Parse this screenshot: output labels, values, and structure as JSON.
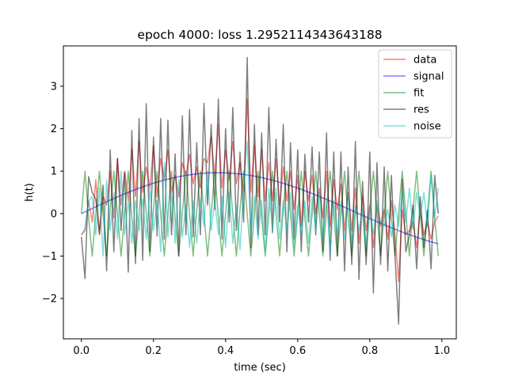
{
  "chart_data": {
    "type": "line",
    "title": "epoch 4000: loss 1.2952114343643188",
    "xlabel": "time (sec)",
    "ylabel": "h(t)",
    "xlim": [
      -0.05,
      1.04
    ],
    "ylim": [
      -2.95,
      3.95
    ],
    "xticks": [
      0.0,
      0.2,
      0.4,
      0.6,
      0.8,
      1.0
    ],
    "xtick_labels": [
      "0.0",
      "0.2",
      "0.4",
      "0.6",
      "0.8",
      "1.0"
    ],
    "yticks": [
      -2,
      -1,
      0,
      1,
      2,
      3
    ],
    "ytick_labels": [
      "−2",
      "−1",
      "0",
      "1",
      "2",
      "3"
    ],
    "grid": false,
    "legend_position": "top-right",
    "x": [
      0.0,
      0.01,
      0.02,
      0.03,
      0.04,
      0.05,
      0.06,
      0.07,
      0.08,
      0.09,
      0.1,
      0.11,
      0.12,
      0.13,
      0.14,
      0.15,
      0.16,
      0.17,
      0.18,
      0.19,
      0.2,
      0.21,
      0.22,
      0.23,
      0.24,
      0.25,
      0.26,
      0.27,
      0.28,
      0.29,
      0.3,
      0.31,
      0.32,
      0.33,
      0.34,
      0.35,
      0.36,
      0.37,
      0.38,
      0.39,
      0.4,
      0.41,
      0.42,
      0.43,
      0.44,
      0.45,
      0.46,
      0.47,
      0.48,
      0.49,
      0.5,
      0.51,
      0.52,
      0.53,
      0.54,
      0.55,
      0.56,
      0.57,
      0.58,
      0.59,
      0.6,
      0.61,
      0.62,
      0.63,
      0.64,
      0.65,
      0.66,
      0.67,
      0.68,
      0.69,
      0.7,
      0.71,
      0.72,
      0.73,
      0.74,
      0.75,
      0.76,
      0.77,
      0.78,
      0.79,
      0.8,
      0.81,
      0.82,
      0.83,
      0.84,
      0.85,
      0.86,
      0.87,
      0.88,
      0.89,
      0.9,
      0.91,
      0.92,
      0.93,
      0.94,
      0.95,
      0.96,
      0.97,
      0.98,
      0.99
    ],
    "series": [
      {
        "name": "data",
        "color": "#ff0000",
        "values": [
          -0.5,
          -0.4,
          0.3,
          -0.2,
          0.8,
          -0.5,
          0.4,
          0.2,
          1.0,
          -0.1,
          1.3,
          0.2,
          1.0,
          0.3,
          1.5,
          0.4,
          1.7,
          0.5,
          1.1,
          0.6,
          1.6,
          0.4,
          1.3,
          0.8,
          1.5,
          0.5,
          0.9,
          0.4,
          1.2,
          0.9,
          1.4,
          0.7,
          1.1,
          0.6,
          1.3,
          1.2,
          1.8,
          0.9,
          2.1,
          0.6,
          1.5,
          0.8,
          1.7,
          0.7,
          1.2,
          0.5,
          2.7,
          0.5,
          1.6,
          0.4,
          1.5,
          0.3,
          1.2,
          0.3,
          1.3,
          0.2,
          1.1,
          0.3,
          1.0,
          0.1,
          0.9,
          -0.3,
          1.0,
          0.3,
          0.9,
          0.0,
          0.6,
          -0.1,
          1.0,
          -0.3,
          0.8,
          0.1,
          0.7,
          -0.4,
          0.5,
          -0.4,
          0.6,
          -0.7,
          0.4,
          -0.4,
          0.2,
          -0.8,
          0.2,
          -0.3,
          0.1,
          -0.6,
          0.3,
          -0.5,
          -1.6,
          0.1,
          -0.5,
          -0.4,
          -0.2,
          -0.8,
          0.1,
          -0.5,
          -0.2,
          -0.6,
          -0.2,
          -0.05
        ]
      },
      {
        "name": "signal",
        "color": "#0000ff",
        "values": [
          0.0,
          0.0432,
          0.086,
          0.1284,
          0.1701,
          0.2108,
          0.2505,
          0.2889,
          0.3258,
          0.361,
          0.3944,
          0.4258,
          0.4551,
          0.4821,
          0.5068,
          0.529,
          0.5487,
          0.5659,
          0.5805,
          0.5924,
          0.6017,
          0.6085,
          0.6127,
          0.6144,
          0.6137,
          0.6106,
          0.6053,
          0.5979,
          0.5885,
          0.5772,
          0.5642,
          0.5495,
          0.5334,
          0.516,
          0.4974,
          0.4778,
          0.4573,
          0.436,
          0.4142,
          0.3919,
          0.3693,
          0.3465,
          0.3236,
          0.3008,
          0.2782,
          0.2558,
          0.2338,
          0.2122,
          0.1912,
          0.1708,
          0.151,
          0.132,
          0.1137,
          0.0962,
          0.0796,
          0.0638,
          0.0489,
          0.0349,
          0.0218,
          0.0096,
          -0.0017,
          -0.0121,
          -0.0216,
          -0.0302,
          -0.038,
          -0.0449,
          -0.051,
          -0.0563,
          -0.0609,
          -0.0647,
          -0.0679,
          -0.0704,
          -0.0723,
          -0.0736,
          -0.0744,
          -0.0747,
          -0.0745,
          -0.0739,
          -0.0729,
          -0.0716,
          -0.0699,
          -0.068,
          -0.0658,
          -0.0634,
          -0.0607,
          -0.0579,
          -0.055,
          -0.0519,
          -0.0487,
          -0.0455,
          -0.0422,
          -0.0389,
          -0.0356,
          -0.0323,
          -0.029,
          -0.0258,
          -0.0226,
          -0.0196,
          -0.0166,
          -0.0137
        ],
        "formula_note": ""
      },
      {
        "name": "fit",
        "color": "#008000",
        "values": [
          0.0,
          1.0,
          -0.1,
          -1.0,
          0.0,
          1.0,
          0.0,
          -1.0,
          0.1,
          1.0,
          0.0,
          -1.0,
          0.0,
          1.0,
          -0.1,
          -1.0,
          0.0,
          1.0,
          0.0,
          -1.0,
          0.1,
          1.0,
          0.0,
          -1.0,
          0.0,
          1.0,
          -0.1,
          -1.0,
          0.0,
          1.0,
          0.0,
          -1.0,
          0.1,
          1.0,
          0.0,
          -1.0,
          0.0,
          1.0,
          -0.1,
          -1.0,
          0.0,
          1.0,
          0.0,
          -1.0,
          0.1,
          1.0,
          0.0,
          -1.0,
          0.0,
          1.0,
          -0.1,
          -1.0,
          0.0,
          1.0,
          0.0,
          -1.0,
          0.1,
          1.0,
          0.0,
          -1.0,
          0.0,
          1.0,
          -0.1,
          -1.0,
          0.0,
          1.0,
          0.0,
          -1.0,
          0.1,
          1.0,
          0.0,
          -1.0,
          0.0,
          1.0,
          -0.1,
          -1.0,
          0.0,
          1.0,
          0.0,
          -1.0,
          0.1,
          1.0,
          0.0,
          -1.0,
          0.0,
          1.0,
          -0.1,
          -1.0,
          0.0,
          1.0,
          0.0,
          -1.0,
          0.1,
          1.0,
          0.0,
          -1.0,
          0.0,
          1.0,
          -0.1,
          -1.0
        ]
      },
      {
        "name": "res",
        "color": "#000000",
        "values": [
          -0.55,
          -1.53,
          0.87,
          0.5,
          0.34,
          -0.47,
          0.67,
          -1.35,
          1.5,
          -0.9,
          1.3,
          -0.4,
          0.97,
          -1.38,
          1.96,
          -1.18,
          2.24,
          -1.1,
          2.59,
          -0.9,
          1.8,
          -0.53,
          2.24,
          -0.6,
          2.2,
          -0.5,
          1.41,
          -1.0,
          2.3,
          -0.5,
          2.45,
          -0.55,
          1.67,
          -0.5,
          2.6,
          0.2,
          2.1,
          0.1,
          2.7,
          -0.6,
          2.0,
          -0.2,
          2.5,
          -0.4,
          1.45,
          -0.2,
          3.68,
          -0.8,
          2.1,
          -0.5,
          1.9,
          -0.5,
          2.5,
          -0.45,
          1.75,
          -0.2,
          2.1,
          -0.9,
          1.67,
          -0.6,
          1.5,
          -0.9,
          1.4,
          -0.2,
          1.57,
          -0.5,
          1.45,
          -0.9,
          1.9,
          -1.1,
          1.45,
          -1.0,
          1.45,
          -1.35,
          1.1,
          -1.2,
          1.7,
          -1.55,
          0.76,
          -1.2,
          1.45,
          -1.87,
          1.2,
          -1.2,
          1.1,
          -1.35,
          0.9,
          -1.0,
          -2.6,
          0.8,
          -0.9,
          -0.5,
          0.2,
          -1.3,
          0.4,
          -0.8,
          0.08,
          -1.3,
          0.9,
          -0.0
        ]
      },
      {
        "name": "noise",
        "color": "#00bfbf",
        "values": [
          -0.5,
          -0.35,
          0.3,
          0.4,
          -0.5,
          0.6,
          -1.0,
          0.8,
          -0.4,
          0.5,
          -0.6,
          1.0,
          -0.5,
          0.3,
          -0.7,
          0.3,
          -0.4,
          0.35,
          -0.6,
          0.6,
          -0.4,
          0.3,
          -0.9,
          1.2,
          -0.55,
          0.5,
          -0.7,
          0.8,
          -0.55,
          0.2,
          -0.8,
          0.3,
          -0.7,
          0.35,
          -0.3,
          1.0,
          -0.4,
          0.3,
          -0.5,
          0.4,
          -0.8,
          0.5,
          -0.7,
          0.2,
          -0.85,
          0.6,
          1.7,
          -0.5,
          0.4,
          -0.6,
          0.3,
          -0.9,
          0.6,
          -0.4,
          0.6,
          -0.6,
          0.3,
          -0.4,
          0.5,
          -0.8,
          0.2,
          -0.5,
          0.3,
          -0.7,
          0.4,
          -0.4,
          0.5,
          -0.6,
          0.35,
          -0.9,
          0.3,
          -0.5,
          0.3,
          -0.6,
          0.45,
          -0.7,
          0.2,
          -0.4,
          0.1,
          -0.75,
          0.15,
          -0.5,
          0.3,
          -0.2,
          -0.3,
          0.1,
          -0.55,
          0.2,
          -0.3,
          0.5,
          -0.2,
          0.6,
          -0.35,
          0.5,
          -0.1,
          0.5,
          -0.3,
          0.9,
          -0.1,
          0.6
        ]
      }
    ],
    "legend": [
      "data",
      "signal",
      "fit",
      "res",
      "noise"
    ]
  }
}
